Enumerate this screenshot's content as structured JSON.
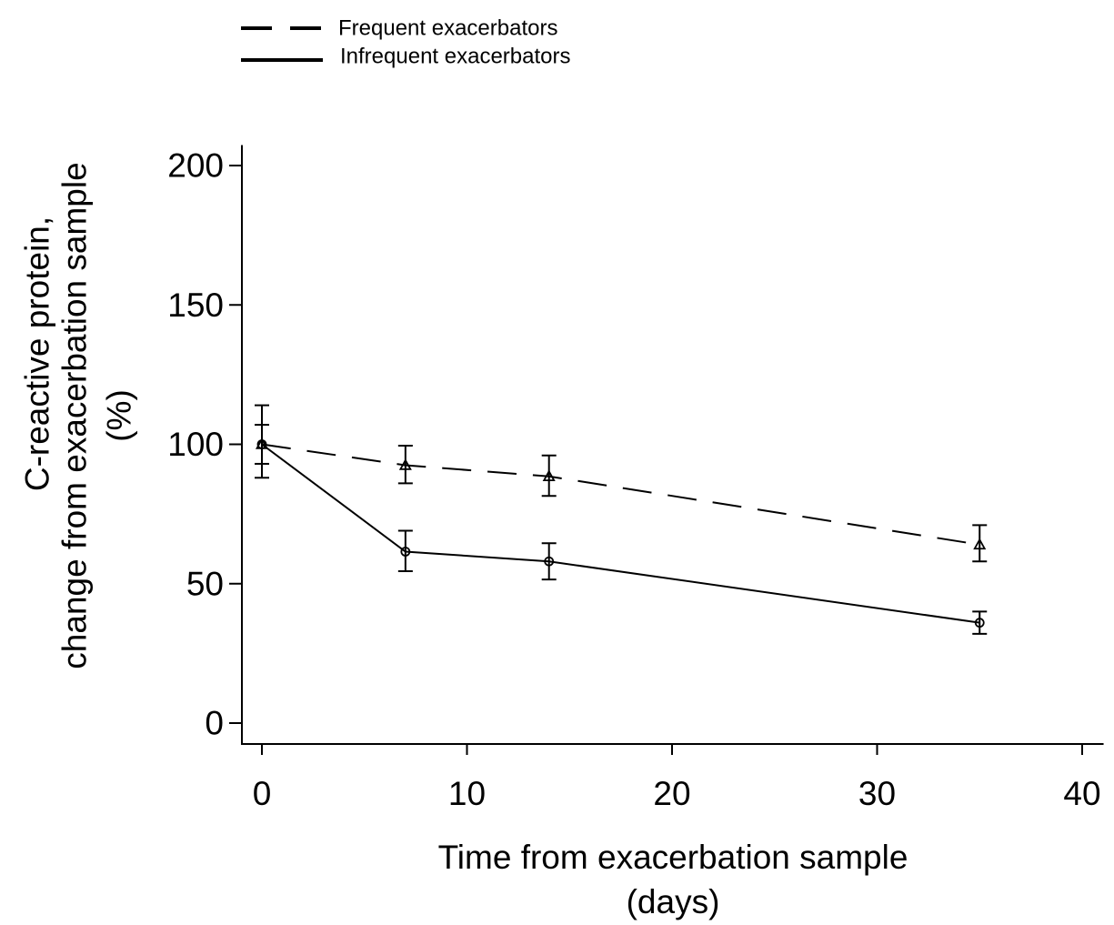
{
  "chart_data": {
    "type": "line",
    "title": "",
    "xlabel": [
      "Time from exacerbation sample",
      "(days)"
    ],
    "ylabel": [
      "C-reactive protein,",
      "change from exacerbation sample",
      "(%)"
    ],
    "xlim": [
      -1,
      41
    ],
    "ylim": [
      -8,
      208
    ],
    "x_ticks": [
      0,
      10,
      20,
      30,
      40
    ],
    "x_tick_labels": [
      "0",
      "10",
      "20",
      "30",
      "40"
    ],
    "y_ticks": [
      0,
      50,
      100,
      150,
      200
    ],
    "y_tick_labels": [
      "0",
      "50",
      "100",
      "150",
      "200"
    ],
    "grid": false,
    "legend_position": "top-left, above plot",
    "series": [
      {
        "name": "Frequent exacerbators",
        "line_style": "dashed",
        "marker": "triangle",
        "x": [
          0,
          7,
          14,
          35
        ],
        "y": [
          100,
          92.5,
          88.5,
          64
        ],
        "err_low": [
          93,
          86,
          81.5,
          58
        ],
        "err_high": [
          107,
          99.5,
          96,
          71
        ]
      },
      {
        "name": "Infrequent exacerbators",
        "line_style": "solid",
        "marker": "circle",
        "x": [
          0,
          7,
          14,
          35
        ],
        "y": [
          100,
          61.5,
          58,
          36
        ],
        "err_low": [
          88,
          54.5,
          51.5,
          32
        ],
        "err_high": [
          114,
          69,
          64.5,
          40
        ]
      }
    ],
    "colors": {
      "line": "#000000",
      "background": "#ffffff"
    }
  }
}
